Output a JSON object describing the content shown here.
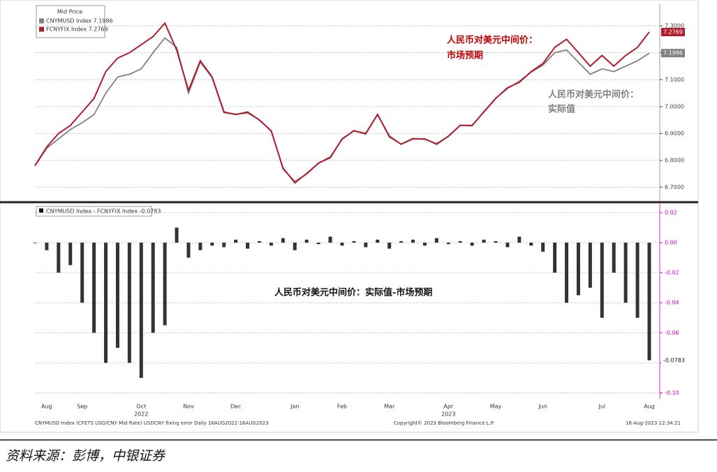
{
  "chart_data": [
    {
      "type": "line",
      "legend_title": "Mid Price",
      "series": [
        {
          "name": "CNYMUSD Index 7.1986",
          "color": "#808080",
          "tag": "7.1986",
          "values": [
            6.78,
            6.845,
            6.88,
            6.915,
            6.94,
            6.97,
            7.05,
            7.11,
            7.12,
            7.14,
            7.2,
            7.255,
            7.22,
            7.05,
            7.165,
            7.108,
            6.977,
            6.972,
            6.976,
            6.951,
            6.908,
            6.773,
            6.715,
            6.752,
            6.789,
            6.814,
            6.878,
            6.911,
            6.897,
            6.972,
            6.886,
            6.861,
            6.882,
            6.878,
            6.863,
            6.889,
            6.931,
            6.928,
            6.982,
            7.031,
            7.067,
            7.094,
            7.128,
            7.154,
            7.2,
            7.21,
            7.165,
            7.12,
            7.14,
            7.13,
            7.15,
            7.17,
            7.1986
          ]
        },
        {
          "name": "FCNYFIX Index 7.2769",
          "color": "#b01c2e",
          "tag": "7.2769",
          "values": [
            6.78,
            6.85,
            6.9,
            6.93,
            6.98,
            7.03,
            7.13,
            7.18,
            7.2,
            7.23,
            7.26,
            7.31,
            7.21,
            7.06,
            7.17,
            7.11,
            6.98,
            6.97,
            6.98,
            6.95,
            6.91,
            6.77,
            6.72,
            6.75,
            6.79,
            6.81,
            6.88,
            6.91,
            6.9,
            6.97,
            6.89,
            6.86,
            6.88,
            6.88,
            6.86,
            6.89,
            6.93,
            6.93,
            6.98,
            7.03,
            7.07,
            7.09,
            7.13,
            7.16,
            7.22,
            7.25,
            7.2,
            7.15,
            7.19,
            7.15,
            7.19,
            7.22,
            7.2769
          ]
        }
      ],
      "ylim": [
        6.65,
        7.37
      ],
      "yticks": [
        {
          "value": 6.7,
          "label": "6.7000"
        },
        {
          "value": 6.8,
          "label": "6.8000"
        },
        {
          "value": 6.9,
          "label": "6.9000"
        },
        {
          "value": 7.0,
          "label": "7.0000"
        },
        {
          "value": 7.1,
          "label": "7.1000"
        },
        {
          "value": 7.2,
          "label": "7.2000"
        },
        {
          "value": 7.3,
          "label": "7.3000"
        }
      ],
      "grid": true,
      "annotations": [
        "人民币对美元中间价：",
        "市场预期",
        "人民币对美元中间价：",
        "实际值"
      ]
    },
    {
      "type": "bar",
      "legend": "CNYMUSD Index - FCNYFIX Index -0.0783",
      "color": "#333333",
      "tag": "-0.0783",
      "categories": [
        null,
        "Aug",
        null,
        null,
        "Sep",
        null,
        null,
        null,
        null,
        "Oct",
        null,
        null,
        null,
        "Nov",
        null,
        null,
        null,
        "Dec",
        null,
        null,
        null,
        null,
        "Jan",
        null,
        null,
        null,
        "Feb",
        null,
        null,
        null,
        "Mar",
        null,
        null,
        null,
        null,
        "Apr",
        null,
        null,
        null,
        "May",
        null,
        null,
        null,
        "Jun",
        null,
        null,
        null,
        null,
        "Jul",
        null,
        null,
        null,
        "Aug"
      ],
      "years": [
        null,
        null,
        null,
        null,
        null,
        null,
        null,
        null,
        null,
        "2022",
        null,
        null,
        null,
        null,
        null,
        null,
        null,
        null,
        null,
        null,
        null,
        null,
        null,
        null,
        null,
        null,
        null,
        null,
        null,
        null,
        null,
        null,
        null,
        null,
        null,
        "2023",
        null,
        null,
        null,
        null,
        null,
        null,
        null,
        null,
        null,
        null,
        null,
        null,
        null,
        null,
        null,
        null,
        null
      ],
      "values": [
        0.0,
        -0.005,
        -0.02,
        -0.015,
        -0.04,
        -0.06,
        -0.08,
        -0.07,
        -0.08,
        -0.09,
        -0.06,
        -0.055,
        0.01,
        -0.01,
        -0.005,
        -0.002,
        -0.003,
        0.002,
        -0.004,
        0.001,
        -0.002,
        0.003,
        -0.005,
        0.002,
        -0.001,
        0.004,
        -0.002,
        0.001,
        -0.003,
        0.002,
        -0.004,
        0.001,
        0.002,
        -0.002,
        0.003,
        -0.001,
        0.001,
        -0.002,
        0.002,
        0.001,
        -0.003,
        0.004,
        -0.002,
        -0.006,
        -0.02,
        -0.04,
        -0.035,
        -0.03,
        -0.05,
        -0.02,
        -0.04,
        -0.05,
        -0.0783
      ],
      "ylim": [
        -0.103,
        0.026
      ],
      "yticks": [
        0.02,
        {
          "value": 0,
          "label": "0.00"
        },
        -0.02,
        -0.04,
        -0.06,
        -0.08,
        {
          "value": -0.1,
          "label": "-0.10"
        }
      ],
      "grid": true,
      "annotation": "人民币对美元中间价：实际值-市场预期"
    }
  ],
  "footer": {
    "left": "CNYMUSD Index (CFETS USD/CNY Mid Rate) USDCNY fixing error  Daily 16AUG2022-16AUG2023",
    "center": "Copyright© 2023 Bloomberg Finance L.P.",
    "right": "16-Aug-2023 12:34:21"
  },
  "source": "资料来源：彭博，中银证券"
}
